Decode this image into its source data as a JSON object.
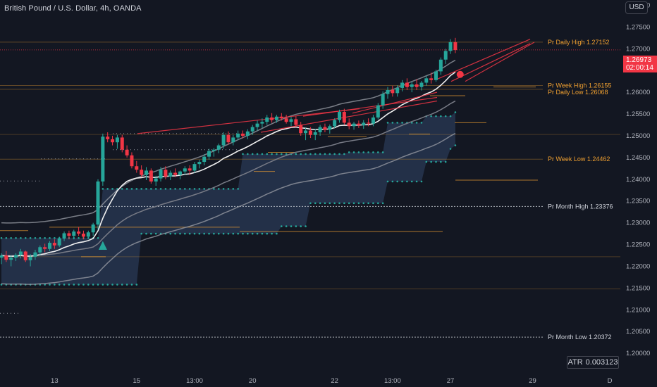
{
  "symbol": {
    "title": "British Pound / U.S. Dollar, 4h, OANDA"
  },
  "currency_button": "USD",
  "indicator": {
    "name": "ATR",
    "value": "0.003123"
  },
  "last_price": {
    "value": "1.26973",
    "countdown": "02:00:14"
  },
  "colors": {
    "background": "#131722",
    "up_candle": "#26a69a",
    "down_candle": "#f23645",
    "band_fill": "#2a3a55",
    "channel": "#9598a1",
    "ma_fast": "#f0f0f0",
    "level_orange": "#f0a030",
    "level_white": "#d1d4dc",
    "trendline": "#f23645"
  },
  "chart_data": {
    "type": "candlestick",
    "y_axis": {
      "range": [
        1.1955,
        1.2812
      ],
      "ticks": [
        "1.28000",
        "1.27500",
        "1.27000",
        "1.26500",
        "1.26000",
        "1.25500",
        "1.25000",
        "1.24500",
        "1.24000",
        "1.23500",
        "1.23000",
        "1.22500",
        "1.22000",
        "1.21500",
        "1.21000",
        "1.20500",
        "1.20000"
      ],
      "position": "right"
    },
    "x_axis": {
      "ticks": [
        {
          "label": "13",
          "bar": 11
        },
        {
          "label": "15",
          "bar": 28
        },
        {
          "label": "13:00",
          "bar": 40
        },
        {
          "label": "20",
          "bar": 52
        },
        {
          "label": "22",
          "bar": 69
        },
        {
          "label": "13:00",
          "bar": 81
        },
        {
          "label": "27",
          "bar": 93
        },
        {
          "label": "29",
          "bar": 110
        },
        {
          "label": "D",
          "bar": 126
        }
      ]
    },
    "candles": [
      [
        1.222,
        1.223,
        1.2205,
        1.2225
      ],
      [
        1.2225,
        1.2235,
        1.221,
        1.2215
      ],
      [
        1.2215,
        1.2225,
        1.22,
        1.222
      ],
      [
        1.222,
        1.223,
        1.2212,
        1.2226
      ],
      [
        1.2226,
        1.224,
        1.2218,
        1.2234
      ],
      [
        1.2234,
        1.2236,
        1.221,
        1.2214
      ],
      [
        1.2214,
        1.2228,
        1.22,
        1.2222
      ],
      [
        1.2222,
        1.2238,
        1.2215,
        1.2232
      ],
      [
        1.2232,
        1.2248,
        1.2225,
        1.2244
      ],
      [
        1.2244,
        1.2252,
        1.2232,
        1.224
      ],
      [
        1.224,
        1.2258,
        1.2235,
        1.2254
      ],
      [
        1.2254,
        1.2262,
        1.224,
        1.2248
      ],
      [
        1.2248,
        1.2268,
        1.2244,
        1.2264
      ],
      [
        1.2264,
        1.228,
        1.2258,
        1.2276
      ],
      [
        1.2276,
        1.2282,
        1.2262,
        1.227
      ],
      [
        1.227,
        1.2284,
        1.2262,
        1.228
      ],
      [
        1.228,
        1.229,
        1.227,
        1.2275
      ],
      [
        1.2275,
        1.2282,
        1.2262,
        1.2268
      ],
      [
        1.2268,
        1.2282,
        1.2264,
        1.2278
      ],
      [
        1.2278,
        1.23,
        1.227,
        1.2296
      ],
      [
        1.2296,
        1.24,
        1.2285,
        1.2395
      ],
      [
        1.2395,
        1.2505,
        1.2385,
        1.2498
      ],
      [
        1.2498,
        1.2508,
        1.2485,
        1.2492
      ],
      [
        1.2492,
        1.25,
        1.2478,
        1.2485
      ],
      [
        1.2485,
        1.2502,
        1.247,
        1.2496
      ],
      [
        1.2496,
        1.2502,
        1.2462,
        1.2468
      ],
      [
        1.2468,
        1.2478,
        1.245,
        1.2455
      ],
      [
        1.2455,
        1.2462,
        1.2425,
        1.243
      ],
      [
        1.243,
        1.2442,
        1.2415,
        1.2422
      ],
      [
        1.2422,
        1.2432,
        1.2405,
        1.241
      ],
      [
        1.241,
        1.2428,
        1.2398,
        1.242
      ],
      [
        1.242,
        1.2425,
        1.239,
        1.2395
      ],
      [
        1.2395,
        1.2408,
        1.2385,
        1.2402
      ],
      [
        1.2402,
        1.2428,
        1.2395,
        1.2422
      ],
      [
        1.2422,
        1.243,
        1.24,
        1.2406
      ],
      [
        1.2406,
        1.242,
        1.2398,
        1.2415
      ],
      [
        1.2415,
        1.2425,
        1.2405,
        1.241
      ],
      [
        1.241,
        1.242,
        1.24,
        1.2418
      ],
      [
        1.2418,
        1.243,
        1.241,
        1.2425
      ],
      [
        1.2425,
        1.2432,
        1.241,
        1.242
      ],
      [
        1.242,
        1.244,
        1.2415,
        1.2435
      ],
      [
        1.2435,
        1.2445,
        1.2425,
        1.244
      ],
      [
        1.244,
        1.2458,
        1.2432,
        1.2452
      ],
      [
        1.2452,
        1.247,
        1.2445,
        1.2465
      ],
      [
        1.2465,
        1.2472,
        1.2452,
        1.2468
      ],
      [
        1.2468,
        1.2482,
        1.246,
        1.2478
      ],
      [
        1.2478,
        1.2508,
        1.247,
        1.2502
      ],
      [
        1.2502,
        1.251,
        1.248,
        1.2485
      ],
      [
        1.2485,
        1.2502,
        1.2478,
        1.2496
      ],
      [
        1.2496,
        1.2512,
        1.249,
        1.2505
      ],
      [
        1.2505,
        1.2512,
        1.2494,
        1.25
      ],
      [
        1.25,
        1.2515,
        1.2492,
        1.251
      ],
      [
        1.251,
        1.2525,
        1.2502,
        1.252
      ],
      [
        1.252,
        1.2535,
        1.2512,
        1.2528
      ],
      [
        1.2528,
        1.254,
        1.2518,
        1.2532
      ],
      [
        1.2532,
        1.2548,
        1.2525,
        1.2542
      ],
      [
        1.2542,
        1.2552,
        1.253,
        1.2536
      ],
      [
        1.2536,
        1.2548,
        1.253,
        1.2544
      ],
      [
        1.2544,
        1.2552,
        1.2535,
        1.254
      ],
      [
        1.254,
        1.2548,
        1.2528,
        1.2532
      ],
      [
        1.2532,
        1.2544,
        1.2522,
        1.2538
      ],
      [
        1.2538,
        1.2545,
        1.252,
        1.2525
      ],
      [
        1.2525,
        1.2532,
        1.25,
        1.2506
      ],
      [
        1.2506,
        1.2518,
        1.249,
        1.2512
      ],
      [
        1.2512,
        1.252,
        1.2495,
        1.2502
      ],
      [
        1.2502,
        1.2515,
        1.249,
        1.2508
      ],
      [
        1.2508,
        1.2525,
        1.25,
        1.252
      ],
      [
        1.252,
        1.2528,
        1.2508,
        1.2514
      ],
      [
        1.2514,
        1.2526,
        1.2505,
        1.2522
      ],
      [
        1.2522,
        1.254,
        1.2518,
        1.2536
      ],
      [
        1.2536,
        1.256,
        1.253,
        1.2555
      ],
      [
        1.2555,
        1.2562,
        1.2525,
        1.253
      ],
      [
        1.253,
        1.254,
        1.2515,
        1.2522
      ],
      [
        1.2522,
        1.2532,
        1.2514,
        1.2528
      ],
      [
        1.2528,
        1.2535,
        1.2518,
        1.2524
      ],
      [
        1.2524,
        1.2536,
        1.2516,
        1.253
      ],
      [
        1.253,
        1.254,
        1.2522,
        1.2528
      ],
      [
        1.2528,
        1.2548,
        1.2522,
        1.2542
      ],
      [
        1.2542,
        1.2575,
        1.2538,
        1.257
      ],
      [
        1.257,
        1.2602,
        1.2562,
        1.2596
      ],
      [
        1.2596,
        1.2612,
        1.2585,
        1.2605
      ],
      [
        1.2605,
        1.2615,
        1.259,
        1.2598
      ],
      [
        1.2598,
        1.2616,
        1.259,
        1.261
      ],
      [
        1.261,
        1.2628,
        1.2602,
        1.2622
      ],
      [
        1.2622,
        1.2632,
        1.2605,
        1.2612
      ],
      [
        1.2612,
        1.2625,
        1.26,
        1.2618
      ],
      [
        1.2618,
        1.263,
        1.2605,
        1.2612
      ],
      [
        1.2612,
        1.2626,
        1.2604,
        1.2622
      ],
      [
        1.2622,
        1.2638,
        1.2615,
        1.2632
      ],
      [
        1.2632,
        1.2645,
        1.262,
        1.2628
      ],
      [
        1.2628,
        1.2652,
        1.2624,
        1.2648
      ],
      [
        1.2648,
        1.268,
        1.264,
        1.2675
      ],
      [
        1.2675,
        1.27,
        1.2665,
        1.2695
      ],
      [
        1.2695,
        1.2722,
        1.2688,
        1.2715
      ],
      [
        1.2715,
        1.2725,
        1.269,
        1.2697
      ]
    ],
    "levels": [
      {
        "label": "Pr Daily High 1.27152",
        "price": 1.27152,
        "color": "orange"
      },
      {
        "label": "Pr Week High 1.26155",
        "price": 1.26155,
        "color": "orange"
      },
      {
        "label": "Pr Daily Low 1.26068",
        "price": 1.26068,
        "color": "orange"
      },
      {
        "label": "Pr Week Low 1.24462",
        "price": 1.24462,
        "color": "orange"
      },
      {
        "label": "Pr Month High 1.23376",
        "price": 1.23376,
        "color": "white"
      },
      {
        "label": "Pr Month Low 1.20372",
        "price": 1.20372,
        "color": "white"
      }
    ]
  }
}
